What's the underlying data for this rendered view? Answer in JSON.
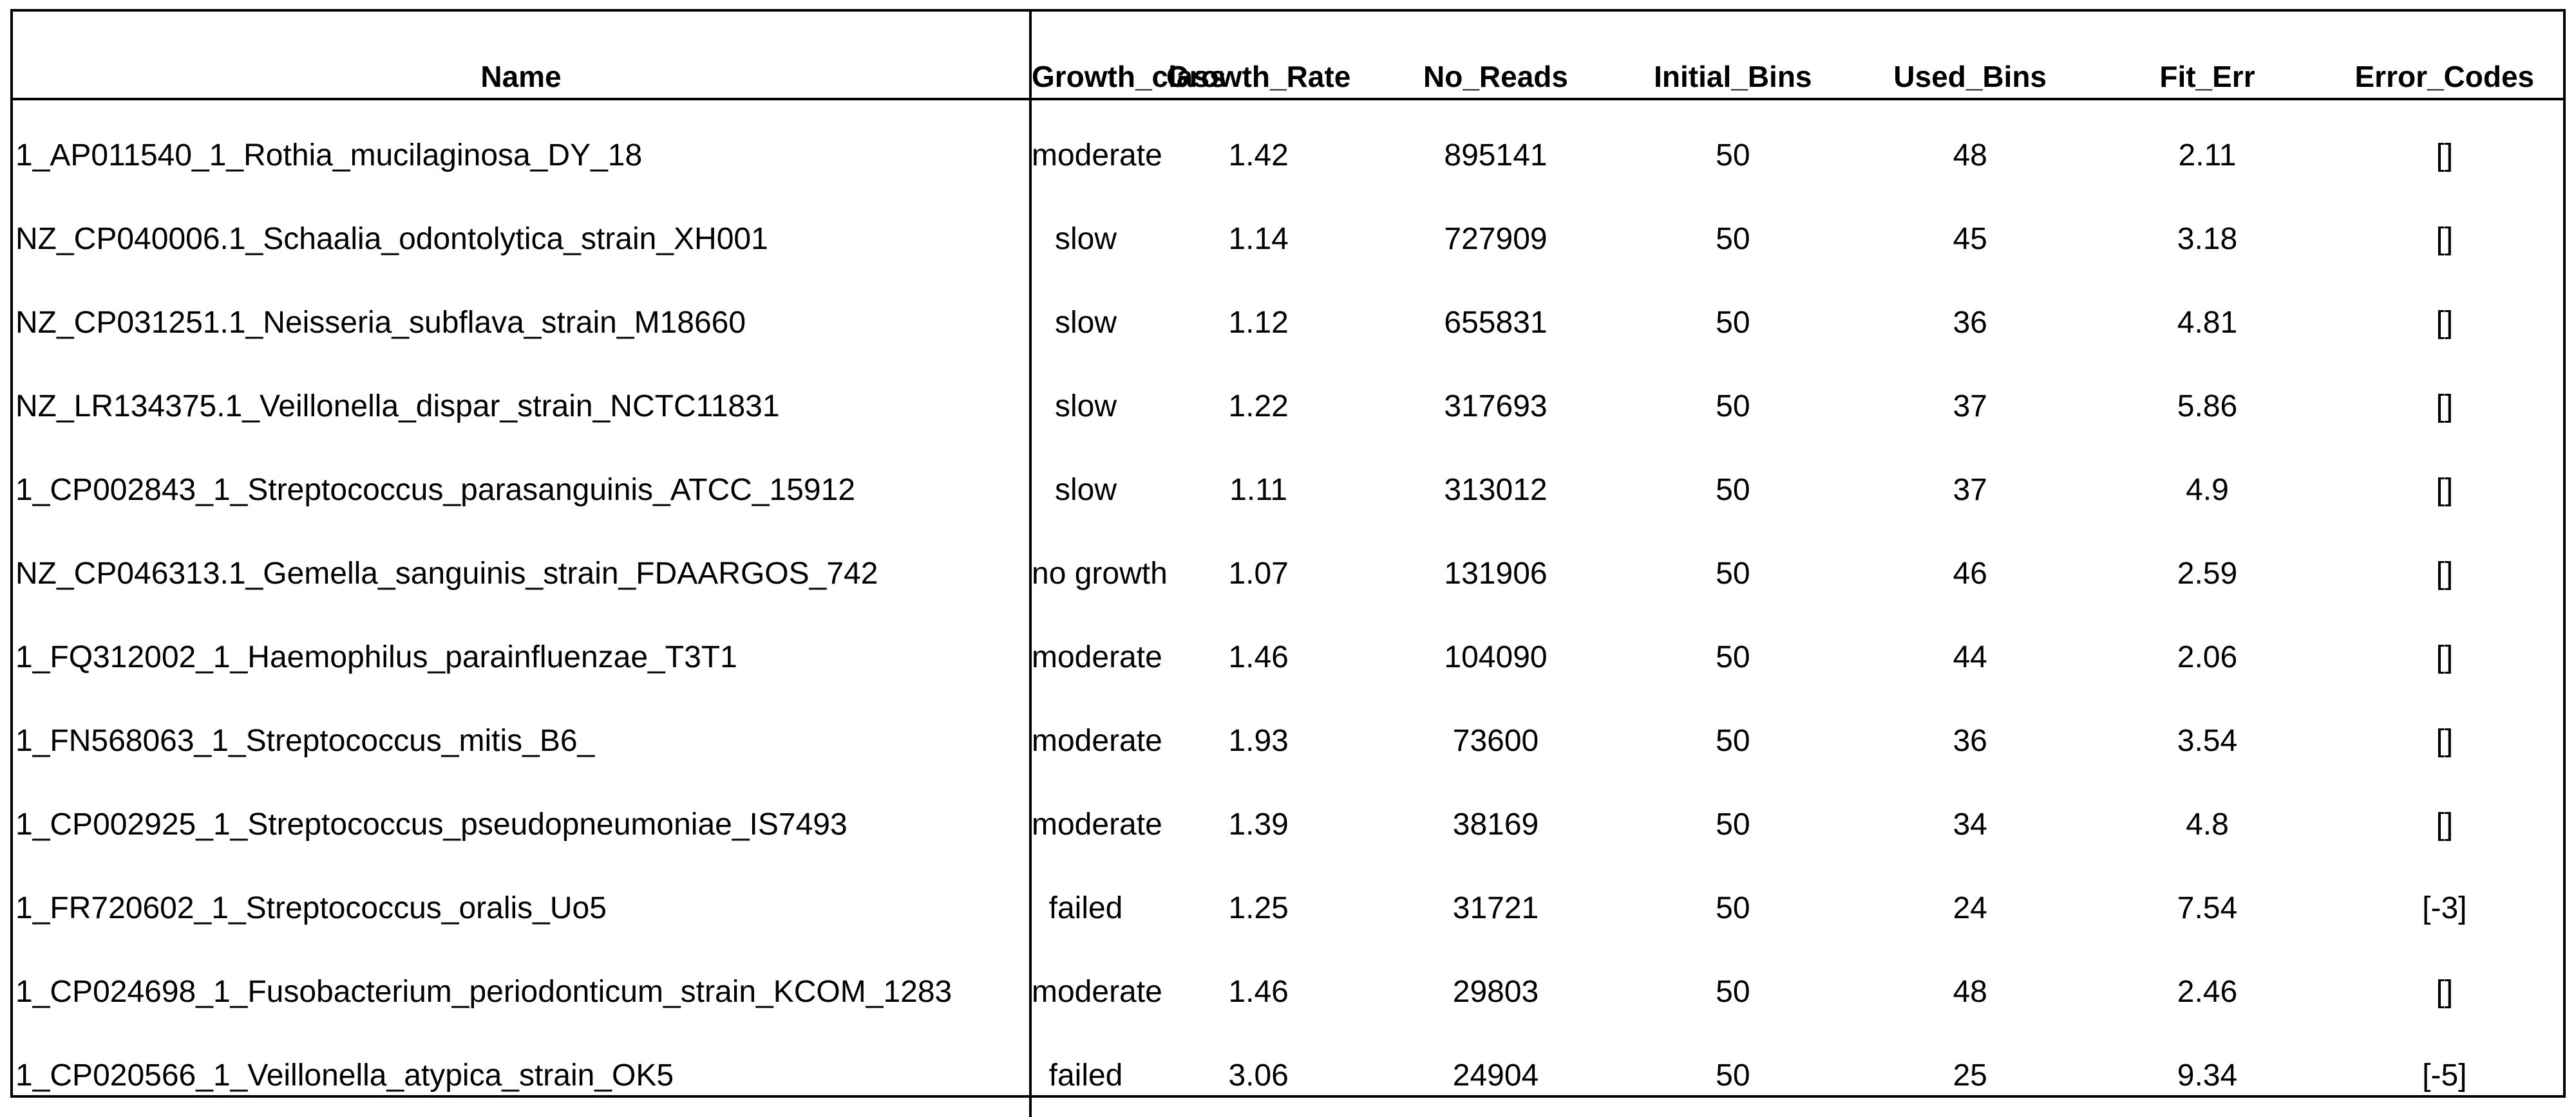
{
  "headers": [
    "Name",
    "Growth_class",
    "Growth_Rate",
    "No_Reads",
    "Initial_Bins",
    "Used_Bins",
    "Fit_Err",
    "Error_Codes"
  ],
  "rows": [
    [
      "1_AP011540_1_Rothia_mucilaginosa_DY_18",
      "moderate",
      "1.42",
      "895141",
      "50",
      "48",
      "2.11",
      "[]"
    ],
    [
      "NZ_CP040006.1_Schaalia_odontolytica_strain_XH001",
      "slow",
      "1.14",
      "727909",
      "50",
      "45",
      "3.18",
      "[]"
    ],
    [
      "NZ_CP031251.1_Neisseria_subflava_strain_M18660",
      "slow",
      "1.12",
      "655831",
      "50",
      "36",
      "4.81",
      "[]"
    ],
    [
      "NZ_LR134375.1_Veillonella_dispar_strain_NCTC11831",
      "slow",
      "1.22",
      "317693",
      "50",
      "37",
      "5.86",
      "[]"
    ],
    [
      "1_CP002843_1_Streptococcus_parasanguinis_ATCC_15912",
      "slow",
      "1.11",
      "313012",
      "50",
      "37",
      "4.9",
      "[]"
    ],
    [
      "NZ_CP046313.1_Gemella_sanguinis_strain_FDAARGOS_742",
      "no growth",
      "1.07",
      "131906",
      "50",
      "46",
      "2.59",
      "[]"
    ],
    [
      "1_FQ312002_1_Haemophilus_parainfluenzae_T3T1",
      "moderate",
      "1.46",
      "104090",
      "50",
      "44",
      "2.06",
      "[]"
    ],
    [
      "1_FN568063_1_Streptococcus_mitis_B6_",
      "moderate",
      "1.93",
      "73600",
      "50",
      "36",
      "3.54",
      "[]"
    ],
    [
      "1_CP002925_1_Streptococcus_pseudopneumoniae_IS7493",
      "moderate",
      "1.39",
      "38169",
      "50",
      "34",
      "4.8",
      "[]"
    ],
    [
      "1_FR720602_1_Streptococcus_oralis_Uo5",
      "failed",
      "1.25",
      "31721",
      "50",
      "24",
      "7.54",
      "[-3]"
    ],
    [
      "1_CP024698_1_Fusobacterium_periodonticum_strain_KCOM_1283",
      "moderate",
      "1.46",
      "29803",
      "50",
      "48",
      "2.46",
      "[]"
    ],
    [
      "1_CP020566_1_Veillonella_atypica_strain_OK5",
      "failed",
      "3.06",
      "24904",
      "50",
      "25",
      "9.34",
      "[-5]"
    ]
  ]
}
